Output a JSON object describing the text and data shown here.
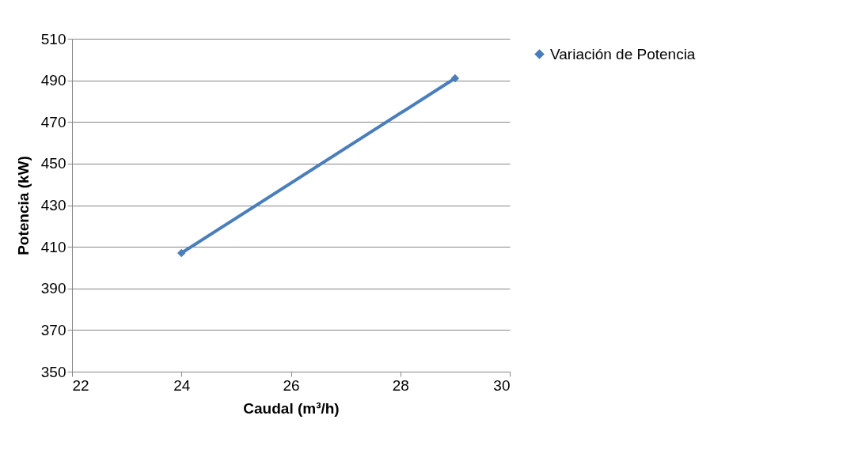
{
  "chart_data": {
    "type": "line",
    "xlabel": "Caudal (m³/h)",
    "ylabel": "Potencia (kW)",
    "x": [
      24,
      29
    ],
    "series": [
      {
        "name": "Variación de Potencia",
        "color": "#4a7ebb",
        "values": [
          407,
          491
        ]
      }
    ],
    "xlim": [
      22,
      30
    ],
    "xticks": [
      22,
      24,
      26,
      28,
      30
    ],
    "ylim": [
      350,
      510
    ],
    "yticks": [
      350,
      370,
      390,
      410,
      430,
      450,
      470,
      490,
      510
    ],
    "grid": "y",
    "legend": "right",
    "marker": "diamond",
    "line_style": "solid"
  }
}
